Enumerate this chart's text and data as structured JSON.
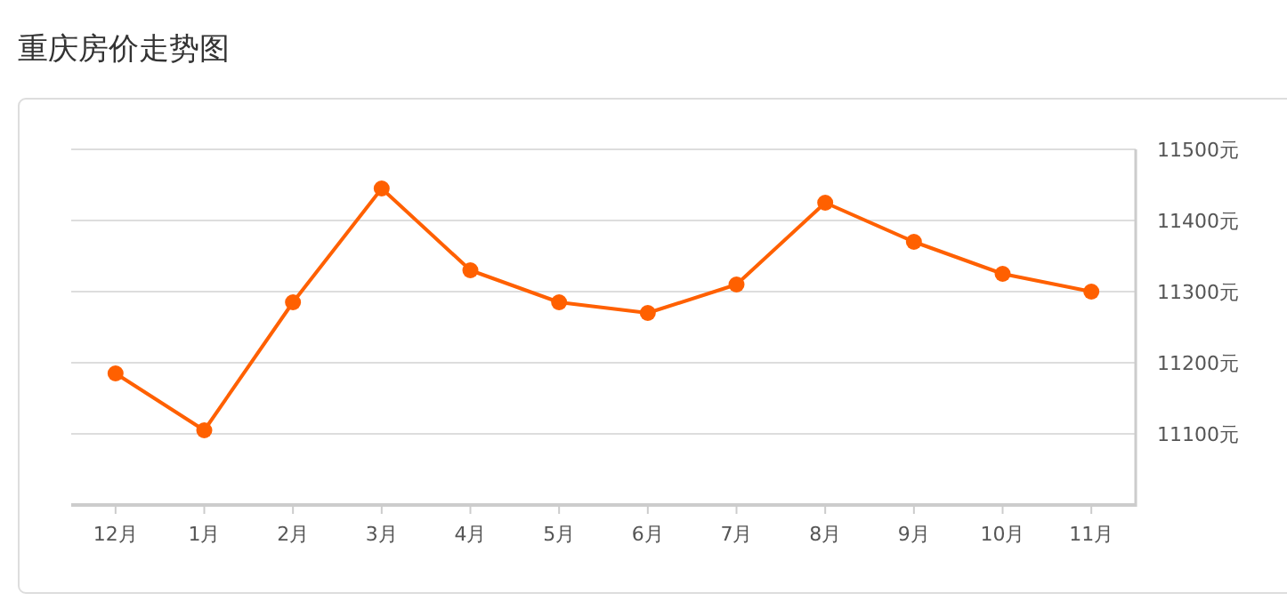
{
  "chart_data": {
    "type": "line",
    "title": "重庆房价走势图",
    "categories": [
      "12月",
      "1月",
      "2月",
      "3月",
      "4月",
      "5月",
      "6月",
      "7月",
      "8月",
      "9月",
      "10月",
      "11月"
    ],
    "series": [
      {
        "color": "#ff6000",
        "values": [
          11185,
          11105,
          11285,
          11445,
          11330,
          11285,
          11270,
          11310,
          11425,
          11370,
          11325,
          11300
        ]
      }
    ],
    "ylim": [
      11000,
      11500
    ],
    "yticks": [
      {
        "value": 11000,
        "label": null
      },
      {
        "value": 11100,
        "label": "11100元"
      },
      {
        "value": 11200,
        "label": "11200元"
      },
      {
        "value": 11300,
        "label": "11300元"
      },
      {
        "value": 11400,
        "label": "11400元"
      },
      {
        "value": 11500,
        "label": "11500元"
      }
    ],
    "grid": "y",
    "marker": "circle",
    "line_style": "solid"
  }
}
